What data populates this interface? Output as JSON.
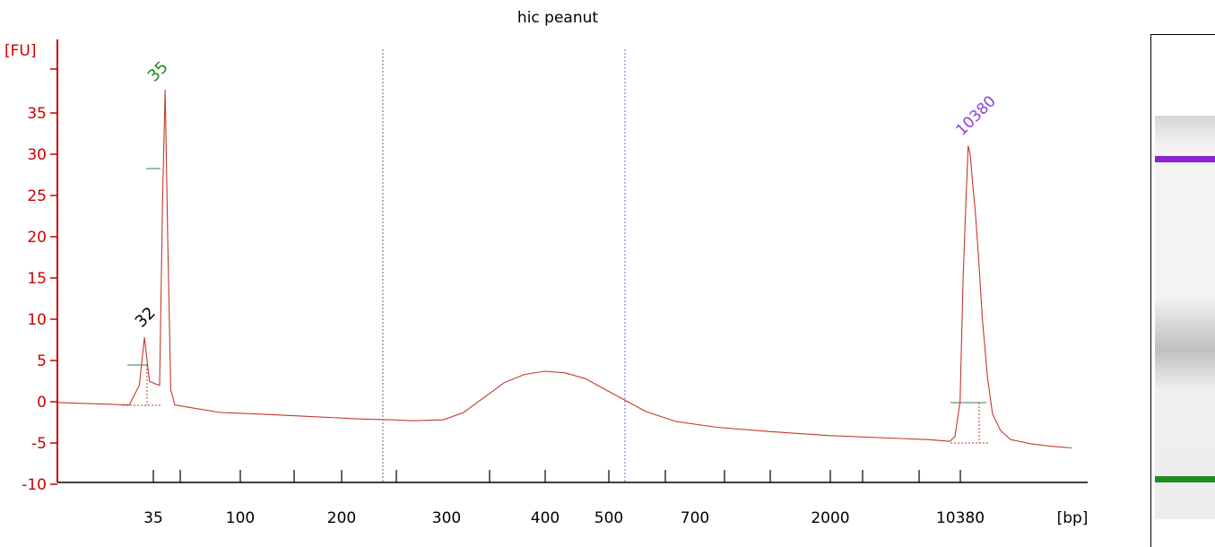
{
  "chart_data": {
    "type": "line",
    "title": "hic peanut",
    "ylabel": "[FU]",
    "xlabel": "[bp]",
    "ylim": [
      -10,
      40
    ],
    "yticks": [
      -10,
      -5,
      0,
      5,
      10,
      15,
      20,
      25,
      30,
      35
    ],
    "xtick_labels": [
      "35",
      "100",
      "200",
      "300",
      "400",
      "500",
      "700",
      "2000",
      "10380"
    ],
    "series": [
      {
        "color": "#c0392b",
        "points": [
          [
            0.0,
            -0.1
          ],
          [
            0.05,
            -0.3
          ],
          [
            0.07,
            -0.4
          ],
          [
            0.08,
            2.0
          ],
          [
            0.085,
            7.8
          ],
          [
            0.09,
            2.5
          ],
          [
            0.095,
            2.2
          ],
          [
            0.1,
            2.0
          ],
          [
            0.103,
            25.0
          ],
          [
            0.1055,
            37.8
          ],
          [
            0.108,
            20.0
          ],
          [
            0.111,
            1.5
          ],
          [
            0.115,
            -0.4
          ],
          [
            0.13,
            -0.7
          ],
          [
            0.16,
            -1.3
          ],
          [
            0.2,
            -1.5
          ],
          [
            0.25,
            -1.8
          ],
          [
            0.3,
            -2.1
          ],
          [
            0.33,
            -2.2
          ],
          [
            0.35,
            -2.3
          ],
          [
            0.38,
            -2.2
          ],
          [
            0.4,
            -1.3
          ],
          [
            0.42,
            0.5
          ],
          [
            0.44,
            2.3
          ],
          [
            0.46,
            3.3
          ],
          [
            0.48,
            3.7
          ],
          [
            0.5,
            3.5
          ],
          [
            0.52,
            2.8
          ],
          [
            0.55,
            0.8
          ],
          [
            0.58,
            -1.2
          ],
          [
            0.61,
            -2.4
          ],
          [
            0.65,
            -3.1
          ],
          [
            0.7,
            -3.6
          ],
          [
            0.76,
            -4.1
          ],
          [
            0.82,
            -4.4
          ],
          [
            0.86,
            -4.6
          ],
          [
            0.88,
            -4.8
          ],
          [
            0.885,
            -4.2
          ],
          [
            0.89,
            0.0
          ],
          [
            0.893,
            15.0
          ],
          [
            0.896,
            25.0
          ],
          [
            0.898,
            31.0
          ],
          [
            0.9,
            30.0
          ],
          [
            0.902,
            27.0
          ],
          [
            0.905,
            23.0
          ],
          [
            0.908,
            18.0
          ],
          [
            0.912,
            10.0
          ],
          [
            0.917,
            3.0
          ],
          [
            0.922,
            -1.5
          ],
          [
            0.93,
            -3.5
          ],
          [
            0.94,
            -4.6
          ],
          [
            0.96,
            -5.1
          ],
          [
            0.98,
            -5.4
          ],
          [
            1.0,
            -5.6
          ]
        ]
      }
    ],
    "peaks": [
      {
        "label": "35",
        "color": "#1a8c1a"
      },
      {
        "label": "32",
        "color": "#000000"
      },
      {
        "label": "10380",
        "color": "#8e3fd6"
      }
    ],
    "markers": [
      {
        "color": "#6b6b6b"
      },
      {
        "color": "#6b6bd6"
      }
    ],
    "gel": {
      "upper_band_color": "#8b22d6",
      "lower_band_color": "#1e8c1e"
    }
  }
}
